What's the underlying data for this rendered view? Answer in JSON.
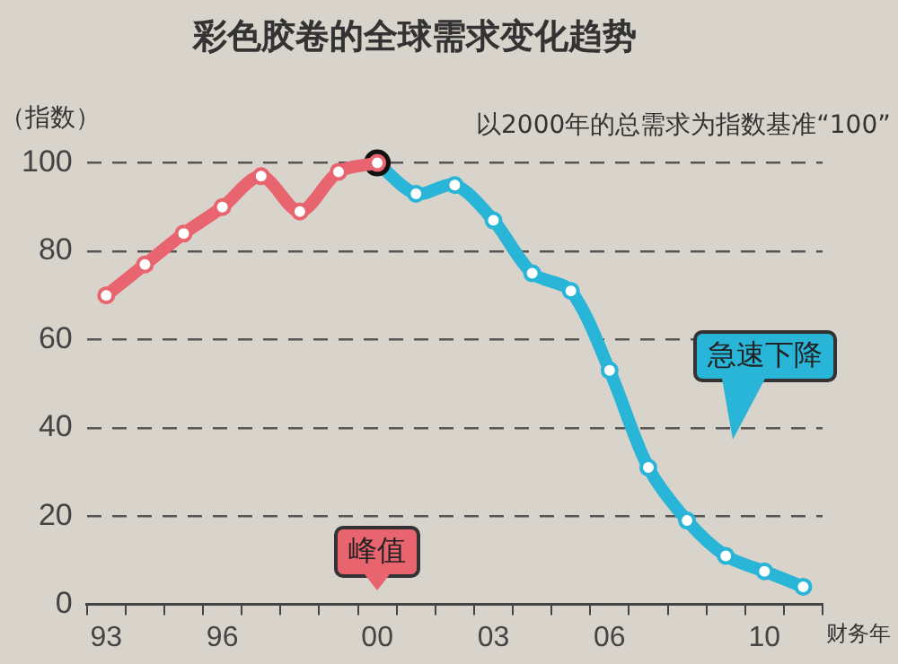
{
  "chart_data": {
    "type": "line",
    "title": "彩色胶卷的全球需求变化趋势",
    "ylabel": "（指数）",
    "xlabel": "财务年",
    "categories": [
      "93",
      null,
      null,
      "96",
      null,
      null,
      null,
      "00",
      null,
      null,
      "03",
      null,
      null,
      "06",
      null,
      null,
      null,
      "10",
      null
    ],
    "series": [
      {
        "color": "#e8646e",
        "values": [
          70,
          77,
          84,
          90,
          97,
          89,
          98,
          100,
          null,
          null,
          null,
          null,
          null,
          null,
          null,
          null,
          null,
          null,
          null
        ]
      },
      {
        "color": "#29b5d8",
        "values": [
          null,
          null,
          null,
          null,
          null,
          null,
          null,
          100,
          93,
          95,
          87,
          75,
          71,
          53,
          31,
          19,
          11,
          7.5,
          4
        ]
      }
    ],
    "ylim": [
      0,
      100
    ],
    "yticks": [
      0,
      20,
      40,
      60,
      80,
      100
    ],
    "grid": "y",
    "legend": false,
    "marker": "circle",
    "line_style": "solid",
    "annotations": [
      "以2000年的总需求为指数基准“100”",
      "峰值",
      "急速下降"
    ]
  }
}
